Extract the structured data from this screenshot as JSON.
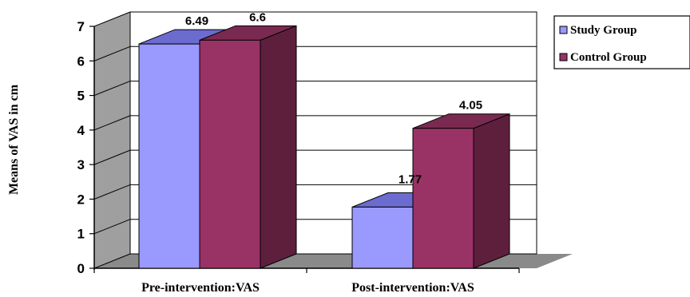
{
  "chart_data": {
    "type": "bar",
    "categories": [
      "Pre-intervention:VAS",
      "Post-intervention:VAS"
    ],
    "series": [
      {
        "name": "Study Group",
        "values": [
          6.49,
          1.77
        ],
        "value_labels": [
          "6.49",
          "1.77"
        ]
      },
      {
        "name": "Control Group",
        "values": [
          6.6,
          4.05
        ],
        "value_labels": [
          "6.6",
          "4.05"
        ]
      }
    ],
    "ylabel": "Means of VAS in cm",
    "xlabel": "",
    "ylim": [
      0,
      7
    ],
    "yticks": [
      "0",
      "1",
      "2",
      "3",
      "4",
      "5",
      "6",
      "7"
    ],
    "grid": true,
    "three_d": true,
    "legend_position": "right",
    "colors": {
      "study_front": "#9a99fe",
      "study_top": "#6b6bd0",
      "study_side": "#5c5cb0",
      "control_front": "#993366",
      "control_top": "#7a2a50",
      "control_side": "#5e1f3d",
      "wall": "#9f9f9f",
      "floor": "#8a8a8a",
      "grid": "#000000"
    }
  }
}
